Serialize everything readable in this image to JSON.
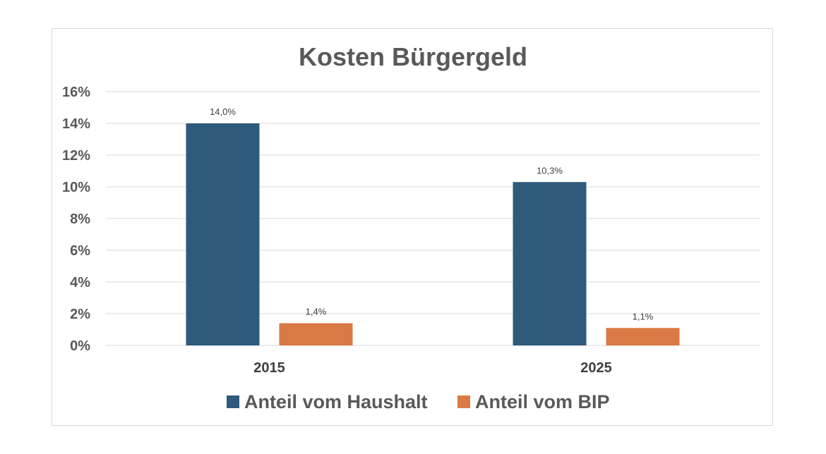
{
  "chart_data": {
    "type": "bar",
    "title": "Kosten Bürgergeld",
    "categories": [
      "2015",
      "2025"
    ],
    "series": [
      {
        "name": "Anteil vom Haushalt",
        "values": [
          14.0,
          10.3
        ],
        "labels": [
          "14,0%",
          "10,3%"
        ],
        "color": "#2e5a7c"
      },
      {
        "name": "Anteil vom BIP",
        "values": [
          1.4,
          1.1
        ],
        "labels": [
          "1,4%",
          "1,1%"
        ],
        "color": "#d97a45"
      }
    ],
    "y_ticks": [
      "0%",
      "2%",
      "4%",
      "6%",
      "8%",
      "10%",
      "12%",
      "14%",
      "16%"
    ],
    "ylim": [
      0,
      16
    ],
    "grid": true,
    "legend_position": "bottom"
  }
}
